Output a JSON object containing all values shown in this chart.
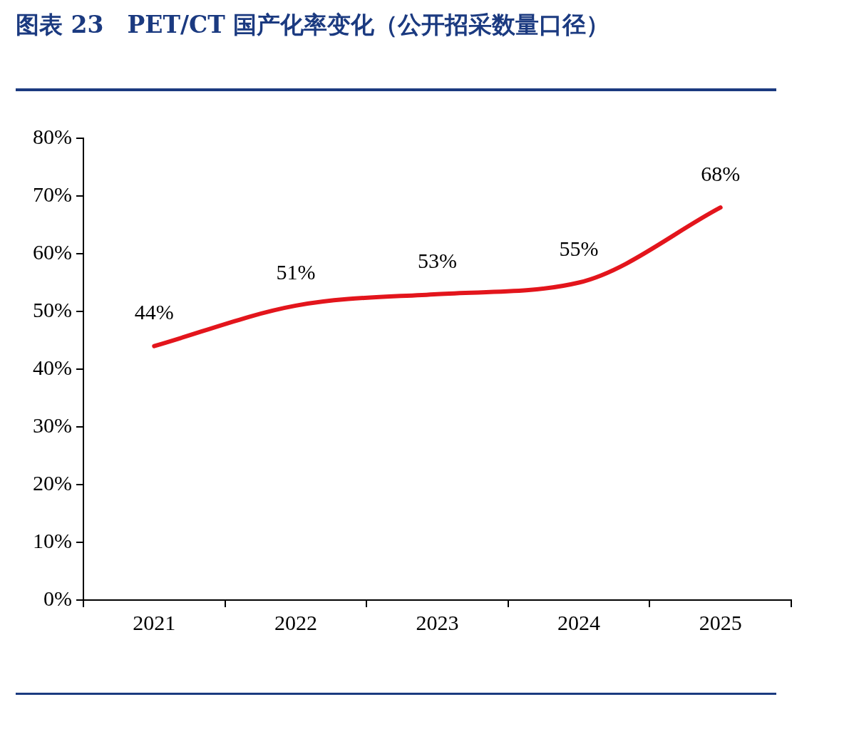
{
  "chart_data": {
    "type": "line",
    "title": "图表 23　PET/CT 国产化率变化（公开招采数量口径）",
    "categories": [
      "2021",
      "2022",
      "2023",
      "2024",
      "2025"
    ],
    "series": [
      {
        "color": "#e3151c",
        "values": [
          44,
          51,
          53,
          55,
          68
        ]
      }
    ],
    "ylim": [
      0,
      80
    ],
    "yticks": [
      {
        "value": 0,
        "label": "0%"
      },
      {
        "value": 10,
        "label": "10%"
      },
      {
        "value": 20,
        "label": "20%"
      },
      {
        "value": 30,
        "label": "30%"
      },
      {
        "value": 40,
        "label": "40%"
      },
      {
        "value": 50,
        "label": "50%"
      },
      {
        "value": 60,
        "label": "60%"
      },
      {
        "value": 70,
        "label": "70%"
      },
      {
        "value": 80,
        "label": "80%"
      }
    ],
    "value_labels": [
      "44%",
      "51%",
      "53%",
      "55%",
      "68%"
    ],
    "grid": false,
    "legend": false,
    "marker": "none",
    "line_style": "solid"
  }
}
